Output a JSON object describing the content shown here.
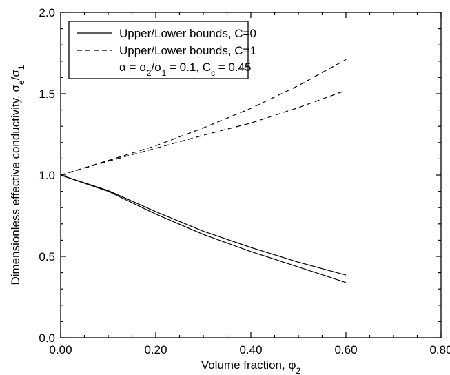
{
  "chart_data": {
    "type": "line",
    "xlabel": "Volume fraction, φ",
    "xlabel_sub": "2",
    "ylabel_parts": [
      "Dimensionless effective conductivity, σ",
      "e",
      "/σ",
      "1"
    ],
    "xlim": [
      0,
      0.8
    ],
    "ylim": [
      0,
      2.0
    ],
    "x_ticks": [
      0,
      0.2,
      0.4,
      0.6,
      0.8
    ],
    "x_tick_labels": [
      "0.00",
      "0.20",
      "0.40",
      "0.60",
      "0.80"
    ],
    "y_ticks": [
      0,
      0.5,
      1.0,
      1.5,
      2.0
    ],
    "y_tick_labels": [
      "0.0",
      "0.5",
      "1.0",
      "1.5",
      "2.0"
    ],
    "grid": false,
    "legend_position": "top-left",
    "legend": [
      {
        "label": "Upper/Lower bounds, C=0",
        "style": "solid"
      },
      {
        "label": "Upper/Lower bounds, C=1",
        "style": "dashed"
      }
    ],
    "annotation_parts": [
      "α = σ",
      "2",
      "/σ",
      "1",
      " = 0.1, C",
      "c",
      " = 0.45"
    ],
    "series": [
      {
        "group": "C=0 upper",
        "style": "solid",
        "x": [
          0,
          0.1,
          0.2,
          0.3,
          0.4,
          0.5,
          0.6
        ],
        "y": [
          1.0,
          0.905,
          0.775,
          0.655,
          0.555,
          0.465,
          0.385
        ]
      },
      {
        "group": "C=0 lower",
        "style": "solid",
        "x": [
          0,
          0.1,
          0.2,
          0.3,
          0.4,
          0.5,
          0.6
        ],
        "y": [
          1.0,
          0.9,
          0.76,
          0.635,
          0.53,
          0.435,
          0.34
        ]
      },
      {
        "group": "C=1 upper",
        "style": "dashed",
        "x": [
          0,
          0.1,
          0.2,
          0.3,
          0.4,
          0.5,
          0.6
        ],
        "y": [
          1.0,
          1.09,
          1.18,
          1.29,
          1.41,
          1.55,
          1.71
        ]
      },
      {
        "group": "C=1 lower",
        "style": "dashed",
        "x": [
          0,
          0.1,
          0.2,
          0.3,
          0.4,
          0.5,
          0.6
        ],
        "y": [
          1.0,
          1.085,
          1.165,
          1.245,
          1.32,
          1.415,
          1.52
        ]
      }
    ]
  }
}
